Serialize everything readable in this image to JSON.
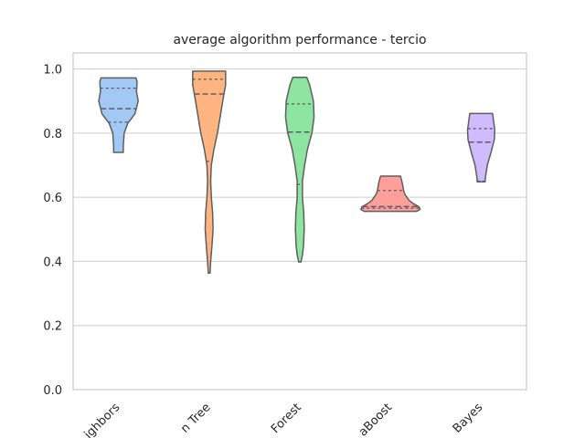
{
  "chart_data": {
    "type": "violin",
    "title": "average algorithm performance - tercio",
    "xlabel": "",
    "ylabel": "",
    "ylim": [
      0.0,
      1.05
    ],
    "yticks": [
      0.0,
      0.2,
      0.4,
      0.6,
      0.8,
      1.0
    ],
    "ytick_labels": [
      "0.0",
      "0.2",
      "0.4",
      "0.6",
      "0.8",
      "1.0"
    ],
    "grid": "horizontal",
    "inner": "quartile",
    "categories": [
      "Nearest Neighbors",
      "Decision Tree",
      "Random Forest",
      "AdaBoost",
      "Naive Bayes"
    ],
    "category_labels_visible": [
      "ighbors",
      "n Tree",
      "Forest",
      "aBoost",
      "Bayes"
    ],
    "series": [
      {
        "category": "Nearest Neighbors",
        "color": "#a1c9f4",
        "min": 0.74,
        "q1": 0.834,
        "median": 0.876,
        "q3": 0.94,
        "max": 0.972,
        "profile": [
          [
            0.74,
            0.22
          ],
          [
            0.76,
            0.22
          ],
          [
            0.8,
            0.26
          ],
          [
            0.83,
            0.42
          ],
          [
            0.86,
            0.75
          ],
          [
            0.9,
            0.9
          ],
          [
            0.93,
            0.82
          ],
          [
            0.96,
            0.85
          ],
          [
            0.972,
            0.8
          ]
        ]
      },
      {
        "category": "Decision Tree",
        "color": "#ffb482",
        "min": 0.363,
        "q1": 0.712,
        "median": 0.922,
        "q3": 0.968,
        "max": 0.993,
        "profile": [
          [
            0.363,
            0.04
          ],
          [
            0.4,
            0.07
          ],
          [
            0.45,
            0.13
          ],
          [
            0.5,
            0.18
          ],
          [
            0.55,
            0.16
          ],
          [
            0.6,
            0.1
          ],
          [
            0.65,
            0.07
          ],
          [
            0.7,
            0.1
          ],
          [
            0.75,
            0.22
          ],
          [
            0.8,
            0.38
          ],
          [
            0.85,
            0.5
          ],
          [
            0.9,
            0.62
          ],
          [
            0.95,
            0.75
          ],
          [
            0.993,
            0.75
          ]
        ]
      },
      {
        "category": "Random Forest",
        "color": "#8de5a1",
        "min": 0.398,
        "q1": 0.64,
        "median": 0.803,
        "q3": 0.891,
        "max": 0.974,
        "profile": [
          [
            0.398,
            0.05
          ],
          [
            0.42,
            0.12
          ],
          [
            0.45,
            0.17
          ],
          [
            0.5,
            0.2
          ],
          [
            0.55,
            0.18
          ],
          [
            0.6,
            0.12
          ],
          [
            0.65,
            0.12
          ],
          [
            0.7,
            0.22
          ],
          [
            0.75,
            0.35
          ],
          [
            0.8,
            0.55
          ],
          [
            0.85,
            0.65
          ],
          [
            0.9,
            0.62
          ],
          [
            0.95,
            0.45
          ],
          [
            0.974,
            0.32
          ]
        ]
      },
      {
        "category": "AdaBoost",
        "color": "#ff9f9b",
        "min": 0.556,
        "q1": 0.566,
        "median": 0.571,
        "q3": 0.621,
        "max": 0.666,
        "profile": [
          [
            0.556,
            1.2
          ],
          [
            0.562,
            1.35
          ],
          [
            0.57,
            1.3
          ],
          [
            0.58,
            1.05
          ],
          [
            0.59,
            0.85
          ],
          [
            0.6,
            0.75
          ],
          [
            0.61,
            0.65
          ],
          [
            0.62,
            0.6
          ],
          [
            0.64,
            0.55
          ],
          [
            0.655,
            0.5
          ],
          [
            0.666,
            0.45
          ]
        ]
      },
      {
        "category": "Naive Bayes",
        "color": "#d0bbff",
        "min": 0.648,
        "q1": 0.65,
        "median": 0.772,
        "q3": 0.814,
        "max": 0.861,
        "profile": [
          [
            0.648,
            0.18
          ],
          [
            0.66,
            0.19
          ],
          [
            0.7,
            0.28
          ],
          [
            0.74,
            0.45
          ],
          [
            0.78,
            0.6
          ],
          [
            0.81,
            0.62
          ],
          [
            0.84,
            0.56
          ],
          [
            0.861,
            0.52
          ]
        ]
      }
    ]
  }
}
